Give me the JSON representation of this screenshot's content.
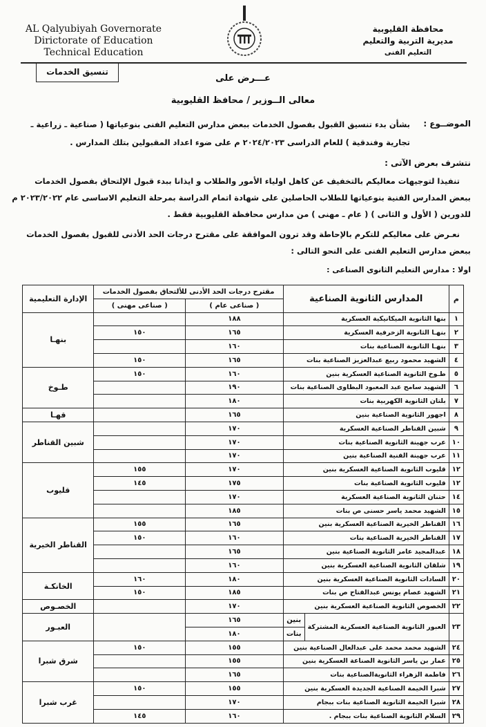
{
  "header": {
    "en_lines": [
      "AL Qalyubiyah Governorate",
      "Dirictorate of  Education",
      "Technical Education"
    ],
    "ar_lines": [
      "محافظة القليوبية",
      "مديرية التربية والتعليم",
      "التعليم الفنى"
    ],
    "box_label": "تنسيق الخدمات"
  },
  "memo": {
    "to_title": "عـــرض على",
    "addressee": "معالى الــوزير / محافظ القليوبية",
    "subject_label": "الموضــوع :",
    "subject_line1": "بشأن بدء تنسيق القبول بفصول الخدمات  ببعض مدارس  التعليم الفنى بنوعياتها ( صناعية ـ زراعية ـ",
    "subject_line2": "تجارية وفندقية )  للعام الدراسى ٢٠٢٤/٢٠٢٣ م   على ضوء اعداد المقبولين  بتلك المدارس .",
    "intro": "نتشرف بعرض الآتى  :",
    "para1_line1": "تنفيذا لتوجيهات معاليكم بالتخفيف عن كاهل اولياء الأمور والطلاب  و ايذانا ببدء  قبول الإلتحاق بفصول الخدمات",
    "para1_line2": "ببعض المدارس الفنية بنوعياتها للطلاب الحاصلين على شهادة اتمام الدراسة بمرحلة التعليم الاساسى  عام ٢٠٢٣/٢٠٢٢ م",
    "para1_line3": "للدورين ( الأول و الثانى ) ( عام ـ مهنى )  من مدارس محافظة القليوبية فقط .",
    "para2_line1": "نعـرض على معاليكم للتكرم بالإحاطة  وقد ترون الموافقة على مقترح درجات الحد الأدنى للقبول بفصول الخدمات",
    "para2_line2": "ببعض مدارس التعليم الفنى  على النحو التالى :",
    "section_title": "اولا : مدارس التعليم الثانوى الصناعى :"
  },
  "table": {
    "headers": {
      "num": "م",
      "school": "المدارس الثانوية الصناعية",
      "proposal": "مقترح درجات الحد الأدنى  للألتحاق بفصول الخدمات",
      "general": "( صناعى عام )",
      "vocational": "( صناعى مهنى )",
      "admin": "الإدارة التعليمية"
    },
    "rows": [
      {
        "num": "١",
        "school": "بنها الثانوية الميكانيكية العسكرية",
        "general": "١٨٨",
        "vocational": "",
        "admin": "بنهـا",
        "span": 4
      },
      {
        "num": "٢",
        "school": "بنهـا الثانوية الزخرفية العسكرية",
        "general": "١٦٥",
        "vocational": "١٥٠"
      },
      {
        "num": "٣",
        "school": "بنهـا الثانوية الصناعية بنات",
        "general": "١٦٠",
        "vocational": ""
      },
      {
        "num": "٤",
        "school": "الشهيد محمود ربيع عبدالعزيز الصناعية بنات",
        "general": "١٦٥",
        "vocational": "١٥٠"
      },
      {
        "num": "٥",
        "school": "طـوخ الثانوية الصناعية العسكرية بنين",
        "general": "١٦٠",
        "vocational": "١٥٠",
        "admin": "طـوخ",
        "span": 3
      },
      {
        "num": "٦",
        "school": "الشهيد سامح عبد المعبود البطاوى الصناعية بنات",
        "general": "١٩٠",
        "vocational": ""
      },
      {
        "num": "٧",
        "school": "بلتان الثانوية الكهربية بنات",
        "general": "١٨٠",
        "vocational": ""
      },
      {
        "num": "٨",
        "school": "اجهور الثانوية الصناعية بنين",
        "general": "١٦٥",
        "vocational": "",
        "admin": "قهـا",
        "span": 1
      },
      {
        "num": "٩",
        "school": "شبين القناطر الصناعية العسكرية",
        "general": "١٧٠",
        "vocational": "",
        "admin": "شبين القناطر",
        "span": 3
      },
      {
        "num": "١٠",
        "school": "عرب جهينة الثانوية الصناعية بنات",
        "general": "١٧٠",
        "vocational": ""
      },
      {
        "num": "١١",
        "school": "عرب جهينة الفنية الصناعية بنين",
        "general": "١٧٠",
        "vocational": ""
      },
      {
        "num": "١٢",
        "school": "قليوب الثانوية الصناعية العسكرية بنين",
        "general": "١٧٠",
        "vocational": "١٥٥",
        "admin": "قليوب",
        "span": 4
      },
      {
        "num": "١٢",
        "school": "قليوب الثانوية الصناعية بنات",
        "general": "١٧٥",
        "vocational": "١٤٥"
      },
      {
        "num": "١٤",
        "school": "حتنان الثانوية  الصناعية العسكرية",
        "general": "١٧٠",
        "vocational": ""
      },
      {
        "num": "١٥",
        "school": "الشهيد محمد ياسر حسنى ص بنات",
        "general": "١٨٥",
        "vocational": ""
      },
      {
        "num": "١٦",
        "school": "القناطر الخيرية الصناعية العسكرية بنين",
        "general": "١٦٥",
        "vocational": "١٥٥",
        "admin": "القناطر الخيرية",
        "span": 4
      },
      {
        "num": "١٧",
        "school": "القناطر الخيرية الصناعية بنات",
        "general": "١٦٠",
        "vocational": "١٥٠"
      },
      {
        "num": "١٨",
        "school": "عبدالمجيد عامر الثانوية الصناعية بنين",
        "general": "١٦٥",
        "vocational": ""
      },
      {
        "num": "١٩",
        "school": "شلقان الثانوية الصناعية العسكرية بنين",
        "general": "١٦٠",
        "vocational": ""
      },
      {
        "num": "٢٠",
        "school": "السادات الثانوية الصناعية العسكرية بنين",
        "general": "١٨٠",
        "vocational": "١٦٠",
        "admin": "الخانكـة",
        "span": 2
      },
      {
        "num": "٢١",
        "school": "الشهيد عصام يونس عبدالفتاح ص بنات",
        "general": "١٨٥",
        "vocational": "١٥٠"
      },
      {
        "num": "٢٢",
        "school": "الخصوص الثانوية الصناعية العسكرية بنين",
        "general": "١٧٠",
        "vocational": "",
        "admin": "الخصـوص",
        "span": 1
      },
      {
        "num": "٢٣",
        "school": "العبور الثانوية الصناعية العسكرية المشتركة",
        "sub": [
          {
            "label": "بنين",
            "general": "١٦٥"
          },
          {
            "label": "بنات",
            "general": "١٨٠"
          }
        ],
        "vocational": "",
        "admin": "العبـور",
        "span": 2
      },
      {
        "num": "٢٤",
        "school": "الشهيد محمد محمد على عبدالعال الصناعية بنين",
        "general": "١٥٥",
        "vocational": "١٥٠",
        "admin": "شرق شبرا",
        "span": 3
      },
      {
        "num": "٢٥",
        "school": "عمار بن ياسر الثانوية الصناعة العسكرية بنين",
        "general": "١٥٥",
        "vocational": ""
      },
      {
        "num": "٢٦",
        "school": "فاطمة الزهراء الثانويةالصناعية بنات",
        "general": "١٦٥",
        "vocational": ""
      },
      {
        "num": "٢٧",
        "school": "شبرا الخيمة الصناعية الجديدة العسكرية بنين",
        "general": "١٥٥",
        "vocational": "١٥٠",
        "admin": "غرب شبرا",
        "span": 3
      },
      {
        "num": "٢٨",
        "school": "شبرا الخيمة الثانوية الصناعية بنات  ببجام",
        "general": "١٧٠",
        "vocational": ""
      },
      {
        "num": "٢٩",
        "school": "السلام الثانوية الصناعية بنات ببجام .",
        "general": "١٦٠",
        "vocational": "١٤٥"
      }
    ]
  }
}
